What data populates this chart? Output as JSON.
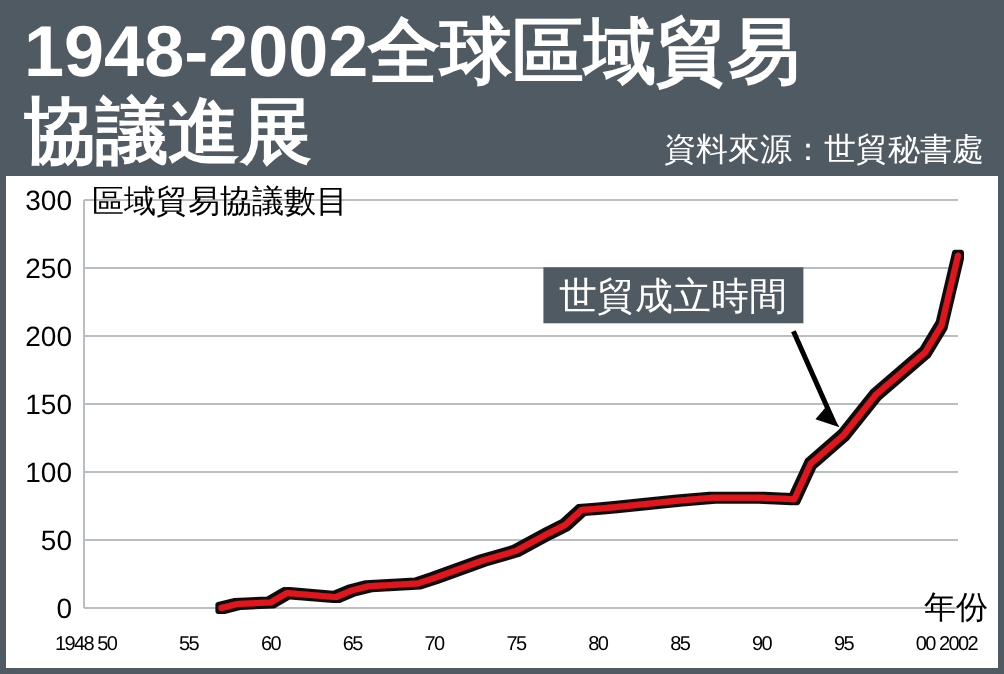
{
  "chart_data": {
    "type": "line",
    "title": "1948-2002全球區域貿易協議進展",
    "ylabel": "區域貿易協議數目",
    "xlabel": "年份",
    "annotations": [
      "資料來源：世貿秘書處",
      {
        "text": "世貿成立時間",
        "x": 1995,
        "y": 127
      }
    ],
    "x": [
      1957,
      1958,
      1960,
      1961,
      1964,
      1965,
      1966,
      1969,
      1970,
      1973,
      1975,
      1977,
      1978,
      1979,
      1980,
      1981,
      1985,
      1987,
      1990,
      1992,
      1993,
      1995,
      1997,
      2000,
      2001,
      2002
    ],
    "series": [
      {
        "color": "#e0141e",
        "values": [
          0,
          3,
          4,
          11,
          8,
          13,
          16,
          18,
          22,
          35,
          42,
          55,
          61,
          72,
          73,
          74,
          79,
          81,
          81,
          80,
          106,
          127,
          157,
          188,
          208,
          259
        ]
      }
    ],
    "xlim": [
      1948,
      2002
    ],
    "xticks": [
      1948,
      {
        "value": 1950,
        "label": "50"
      },
      {
        "value": 1955,
        "label": "55"
      },
      {
        "value": 1960,
        "label": "60"
      },
      {
        "value": 1965,
        "label": "65"
      },
      {
        "value": 1970,
        "label": "70"
      },
      {
        "value": 1975,
        "label": "75"
      },
      {
        "value": 1980,
        "label": "80"
      },
      {
        "value": 1985,
        "label": "85"
      },
      {
        "value": 1990,
        "label": "90"
      },
      {
        "value": 1995,
        "label": "95"
      },
      {
        "value": 2000,
        "label": "00"
      },
      2002
    ],
    "ylim": [
      0,
      300
    ],
    "yticks": [
      0,
      50,
      100,
      150,
      200,
      250,
      300
    ],
    "grid": "y",
    "marker": "none",
    "line_style": "solid"
  }
}
